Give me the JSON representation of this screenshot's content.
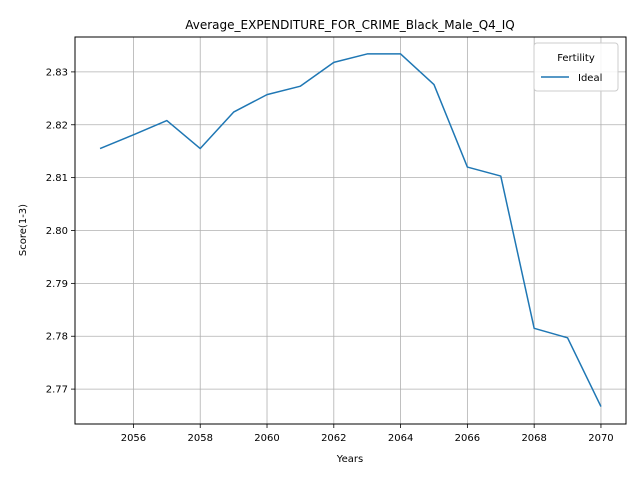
{
  "chart_data": {
    "type": "line",
    "title": "Average_EXPENDITURE_FOR_CRIME_Black_Male_Q4_IQ",
    "xlabel": "Years",
    "ylabel": "Score(1-3)",
    "xlim": [
      2054.25,
      2070.75
    ],
    "ylim": [
      2.7634,
      2.8366
    ],
    "xticks": [
      2056,
      2058,
      2060,
      2062,
      2064,
      2066,
      2068,
      2070
    ],
    "yticks": [
      2.77,
      2.78,
      2.79,
      2.8,
      2.81,
      2.82,
      2.83
    ],
    "ytick_labels": [
      "2.77",
      "2.78",
      "2.79",
      "2.80",
      "2.81",
      "2.82",
      "2.83"
    ],
    "grid": true,
    "legend": {
      "title": "Fertility",
      "placement": "top-right"
    },
    "series": [
      {
        "name": "Ideal",
        "color": "#1f77b4",
        "x": [
          2055,
          2056,
          2057,
          2058,
          2059,
          2060,
          2061,
          2062,
          2063,
          2064,
          2065,
          2066,
          2067,
          2068,
          2069,
          2070
        ],
        "y": [
          2.8155,
          2.8181,
          2.8208,
          2.8155,
          2.8224,
          2.8257,
          2.8273,
          2.8318,
          2.8334,
          2.8334,
          2.8276,
          2.812,
          2.8103,
          2.7815,
          2.7797,
          2.7667
        ]
      }
    ]
  }
}
